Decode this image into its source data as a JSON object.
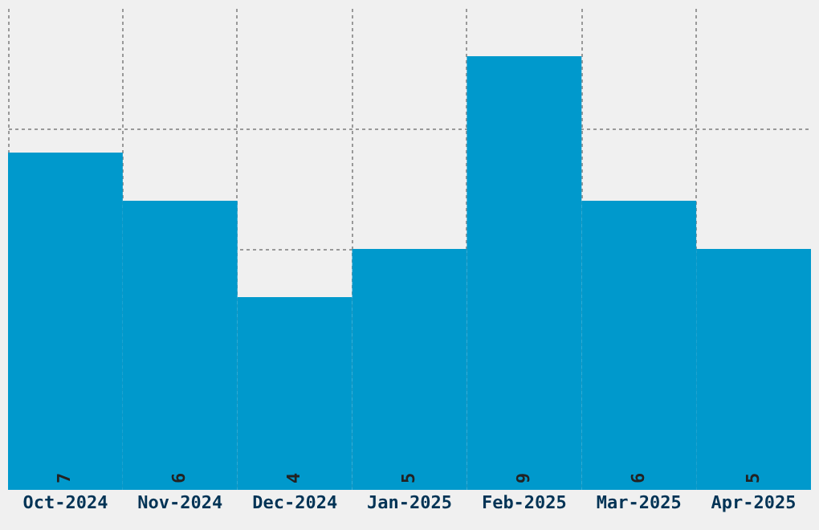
{
  "chart_data": {
    "type": "bar",
    "categories": [
      "Oct-2024",
      "Nov-2024",
      "Dec-2024",
      "Jan-2025",
      "Feb-2025",
      "Mar-2025",
      "Apr-2025"
    ],
    "values": [
      7,
      6,
      4,
      5,
      9,
      6,
      5
    ],
    "color": "#0099cc",
    "data_labels": true,
    "ylim": [
      0,
      10
    ],
    "tick_labels": "x",
    "grid": true
  }
}
